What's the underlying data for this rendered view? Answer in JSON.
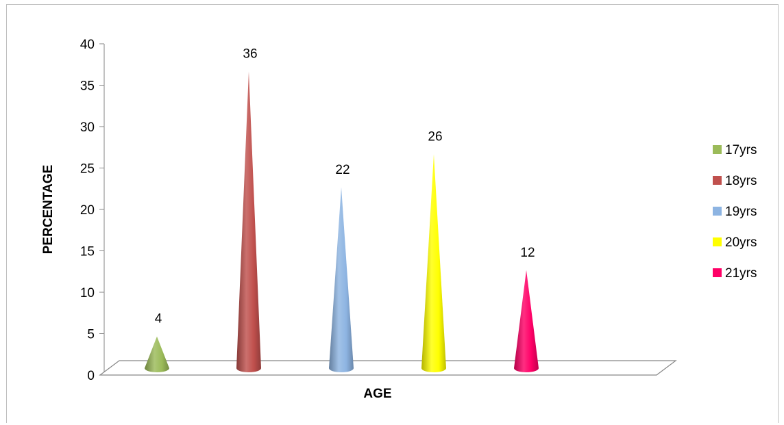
{
  "chart_data": {
    "type": "bar",
    "style": "3d-cone",
    "title": "",
    "xlabel": "AGE",
    "ylabel": "PERCENTAGE",
    "ylim": [
      0,
      40
    ],
    "yticks": [
      0,
      5,
      10,
      15,
      20,
      25,
      30,
      35,
      40
    ],
    "grid": false,
    "legend_position": "right",
    "series": [
      {
        "name": "17yrs",
        "value": 4,
        "label": "4",
        "color": "#9BBB59"
      },
      {
        "name": "18yrs",
        "value": 36,
        "label": "36",
        "color": "#C0504D"
      },
      {
        "name": "19yrs",
        "value": 22,
        "label": "22",
        "color": "#8DB4E2"
      },
      {
        "name": "20yrs",
        "value": 26,
        "label": "26",
        "color": "#FFFF00"
      },
      {
        "name": "21yrs",
        "value": 12,
        "label": "12",
        "color": "#FF0066"
      }
    ]
  }
}
